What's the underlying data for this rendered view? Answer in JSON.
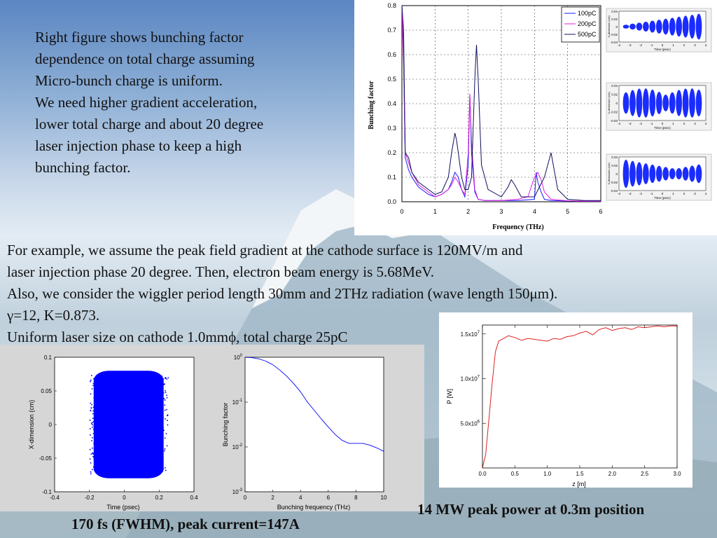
{
  "intro_lines": [
    "Right figure shows bunching factor",
    "dependence on total charge assuming",
    "Micro-bunch charge is uniform.",
    "We need higher gradient acceleration,",
    "lower total charge and about 20 degree",
    "laser injection phase to keep a high",
    "bunching factor."
  ],
  "paragraph_lines": [
    "For example, we assume the peak field gradient at the cathode surface is 120MV/m and",
    "laser injection phase 20 degree. Then, electron beam energy is 5.68MeV.",
    "Also, we consider the wiggler period length 30mm and 2THz radiation (wave length 150μm).",
    "γ=12, K=0.873.",
    "Uniform laser size on cathode 1.0mmϕ, total charge 25pC"
  ],
  "captions": {
    "left": "170 fs (FWHM), peak current=147A",
    "right": "14 MW peak power at 0.3m position"
  },
  "chart_data": [
    {
      "id": "bunching-vs-charge",
      "type": "line",
      "xlabel": "Frequency (THz)",
      "ylabel": "Bunching factor",
      "xlim": [
        0,
        6
      ],
      "ylim": [
        0,
        0.8
      ],
      "xticks": [
        "0",
        "1",
        "2",
        "3",
        "4",
        "5",
        "6"
      ],
      "yticks": [
        "0.0",
        "0.1",
        "0.2",
        "0.3",
        "0.4",
        "0.5",
        "0.6",
        "0.7",
        "0.8"
      ],
      "grid": true,
      "legend": "top-right",
      "series": [
        {
          "name": "100pC",
          "color": "#1a1aff",
          "x": [
            0,
            0.05,
            0.1,
            0.2,
            0.3,
            0.5,
            0.8,
            1.0,
            1.2,
            1.4,
            1.5,
            1.6,
            1.65,
            1.7,
            1.8,
            1.9,
            2.0,
            2.05,
            2.1,
            2.2,
            2.3,
            2.5,
            3.0,
            3.5,
            4.0,
            4.05,
            4.1,
            4.2,
            4.3,
            4.5,
            5.0,
            5.5,
            6.0
          ],
          "y": [
            0.8,
            0.6,
            0.18,
            0.13,
            0.1,
            0.06,
            0.03,
            0.02,
            0.03,
            0.05,
            0.08,
            0.12,
            0.11,
            0.1,
            0.05,
            0.02,
            0.15,
            0.44,
            0.2,
            0.04,
            0.01,
            0.005,
            0.005,
            0.005,
            0.01,
            0.12,
            0.08,
            0.04,
            0.01,
            0.005,
            0.003,
            0.002,
            0.002
          ]
        },
        {
          "name": "200pC",
          "color": "#e020e0",
          "x": [
            0,
            0.05,
            0.1,
            0.2,
            0.3,
            0.5,
            0.8,
            1.0,
            1.2,
            1.4,
            1.5,
            1.6,
            1.65,
            1.7,
            1.8,
            1.9,
            2.0,
            2.05,
            2.1,
            2.2,
            2.3,
            2.5,
            3.0,
            3.5,
            3.8,
            4.0,
            4.1,
            4.2,
            4.3,
            4.5,
            5.0,
            5.5,
            6.0
          ],
          "y": [
            0.8,
            0.55,
            0.2,
            0.16,
            0.12,
            0.07,
            0.04,
            0.02,
            0.03,
            0.05,
            0.07,
            0.1,
            0.09,
            0.08,
            0.05,
            0.03,
            0.2,
            0.44,
            0.25,
            0.05,
            0.01,
            0.005,
            0.005,
            0.01,
            0.02,
            0.1,
            0.12,
            0.09,
            0.04,
            0.01,
            0.004,
            0.002,
            0.002
          ]
        },
        {
          "name": "500pC",
          "color": "#101060",
          "x": [
            0,
            0.05,
            0.1,
            0.2,
            0.3,
            0.5,
            0.8,
            1.0,
            1.2,
            1.4,
            1.5,
            1.6,
            1.65,
            1.7,
            1.8,
            1.9,
            2.0,
            2.1,
            2.2,
            2.25,
            2.3,
            2.4,
            2.6,
            3.0,
            3.2,
            3.3,
            3.4,
            3.6,
            4.0,
            4.3,
            4.5,
            4.7,
            5.0,
            5.5,
            6.0
          ],
          "y": [
            0.8,
            0.7,
            0.2,
            0.18,
            0.12,
            0.08,
            0.05,
            0.03,
            0.04,
            0.1,
            0.2,
            0.28,
            0.25,
            0.2,
            0.1,
            0.05,
            0.05,
            0.1,
            0.5,
            0.64,
            0.5,
            0.15,
            0.05,
            0.02,
            0.06,
            0.09,
            0.07,
            0.02,
            0.02,
            0.1,
            0.2,
            0.05,
            0.01,
            0.005,
            0.005
          ]
        }
      ]
    },
    {
      "id": "charge-phase-space-insets",
      "type": "scatter",
      "xlabel": "Time (psec)",
      "ylabel": "X-dimension (cm)",
      "rows": [
        {
          "label": "100pC",
          "yticks": [
            "0.04",
            "0.02",
            "0",
            "-0.02",
            "-0.04"
          ]
        },
        {
          "label": "200pC",
          "yticks": [
            "0.04",
            "0.02",
            "0",
            "-0.02",
            "-0.04"
          ]
        },
        {
          "label": "500pC",
          "yticks": [
            "0.04",
            "0.02",
            "0",
            "-0.02",
            "-0.04"
          ]
        }
      ],
      "xticks": [
        "-4",
        "-3",
        "-2",
        "-1",
        "0",
        "1",
        "2",
        "3",
        "4"
      ]
    },
    {
      "id": "phase-space-25pC",
      "type": "scatter",
      "xlabel": "Time (psec)",
      "ylabel": "X-dimension (cm)",
      "xlim": [
        -0.4,
        0.4
      ],
      "ylim": [
        -0.1,
        0.1
      ],
      "xticks": [
        "-0.4",
        "-0.2",
        "0",
        "0.2",
        "0.4"
      ],
      "yticks": [
        "0.1",
        "0.05",
        "0",
        "-0.05",
        "-0.1"
      ],
      "x_range_filled": [
        -0.2,
        0.25
      ],
      "y_range_filled": [
        -0.08,
        0.08
      ],
      "color": "#0000ff"
    },
    {
      "id": "bunching-frequency-log",
      "type": "line",
      "xlabel": "Bunching frequency (THz)",
      "ylabel": "Bunching factor",
      "xlim": [
        0,
        10
      ],
      "ylim": [
        0.001,
        1
      ],
      "log_y": true,
      "xticks": [
        "0",
        "2",
        "4",
        "6",
        "8",
        "10"
      ],
      "yticks": [
        "10^0",
        "10^-1",
        "10^-2",
        "10^-3"
      ],
      "series": [
        {
          "color": "#0000ff",
          "x": [
            0,
            0.5,
            1,
            1.5,
            2,
            2.5,
            3,
            3.5,
            4,
            4.5,
            5,
            5.5,
            6,
            6.5,
            7,
            7.5,
            8,
            8.5,
            9,
            9.5,
            10
          ],
          "y": [
            1,
            0.98,
            0.92,
            0.82,
            0.68,
            0.52,
            0.38,
            0.26,
            0.17,
            0.1,
            0.065,
            0.042,
            0.028,
            0.019,
            0.014,
            0.012,
            0.012,
            0.012,
            0.011,
            0.0095,
            0.008
          ]
        }
      ]
    },
    {
      "id": "fel-power",
      "type": "line",
      "xlabel": "z [m]",
      "ylabel": "P [W]",
      "xlim": [
        0,
        3.0
      ],
      "ylim": [
        0,
        16000000
      ],
      "xticks": [
        "0.0",
        "0.5",
        "1.0",
        "1.5",
        "2.0",
        "2.5",
        "3.0"
      ],
      "yticks": [
        "5.0x10^6",
        "1.0x10^7",
        "1.5x10^7"
      ],
      "series": [
        {
          "color": "#e02020",
          "x": [
            0,
            0.05,
            0.1,
            0.15,
            0.2,
            0.25,
            0.3,
            0.4,
            0.5,
            0.6,
            0.7,
            0.8,
            0.9,
            1.0,
            1.1,
            1.2,
            1.3,
            1.4,
            1.5,
            1.6,
            1.7,
            1.8,
            1.9,
            2.0,
            2.1,
            2.2,
            2.3,
            2.4,
            2.5,
            2.6,
            2.7,
            2.8,
            2.9,
            3.0
          ],
          "y": [
            0,
            1500000,
            5500000,
            9500000,
            13000000,
            14200000,
            14400000,
            14800000,
            14600000,
            14300000,
            14500000,
            14400000,
            14300000,
            14200000,
            14500000,
            14400000,
            14700000,
            14800000,
            15100000,
            15300000,
            14900000,
            15500000,
            15700000,
            15400000,
            15600000,
            15700000,
            15500000,
            15800000,
            15700000,
            15800000,
            15900000,
            15800000,
            15900000,
            15900000
          ]
        }
      ]
    }
  ]
}
